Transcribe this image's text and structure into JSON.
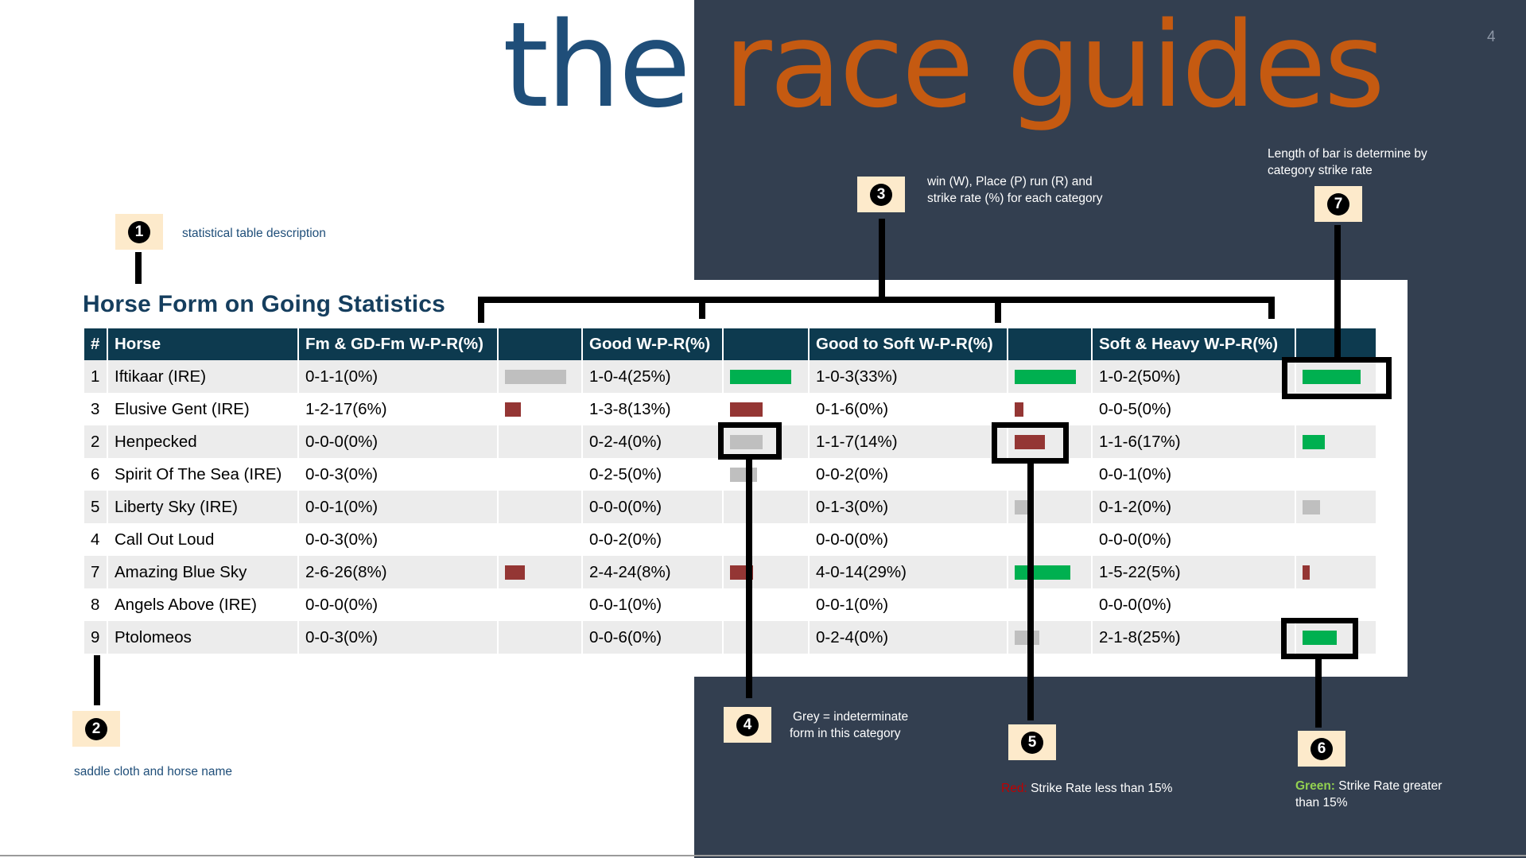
{
  "logo": {
    "word1": "the",
    "word2": "race guides"
  },
  "page_number": "4",
  "colors": {
    "dark_bg": "#333f50",
    "table_header": "#0d3a4f",
    "bar_green": "#00b050",
    "bar_red": "#943634",
    "bar_grey": "#bfbfbf",
    "logo_blue": "#1f4e79",
    "logo_orange": "#c55a11",
    "green_label": "#92d050",
    "red_label": "#c00000"
  },
  "table": {
    "title": "Horse Form on Going Statistics",
    "headers": [
      "#",
      "Horse",
      "Fm & GD-Fm W-P-R(%)",
      "",
      "Good W-P-R(%)",
      "",
      "Good to Soft W-P-R(%)",
      "",
      "Soft & Heavy W-P-R(%)",
      ""
    ],
    "rows": [
      {
        "num": "1",
        "horse": "Iftikaar (IRE)",
        "c1": "0-1-1(0%)",
        "b1": {
          "color": "grey",
          "level": 0.85
        },
        "c2": "1-0-4(25%)",
        "b2": {
          "color": "green",
          "level": 0.85
        },
        "c3": "1-0-3(33%)",
        "b3": {
          "color": "green",
          "level": 0.85
        },
        "c4": "1-0-2(50%)",
        "b4": {
          "color": "green",
          "level": 0.85
        }
      },
      {
        "num": "3",
        "horse": "Elusive Gent (IRE)",
        "c1": "1-2-17(6%)",
        "b1": {
          "color": "red",
          "level": 0.22
        },
        "c2": "1-3-8(13%)",
        "b2": {
          "color": "red",
          "level": 0.45
        },
        "c3": "0-1-6(0%)",
        "b3": {
          "color": "red",
          "level": 0.12
        },
        "c4": "0-0-5(0%)",
        "b4": null
      },
      {
        "num": "2",
        "horse": "Henpecked",
        "c1": "0-0-0(0%)",
        "b1": null,
        "c2": "0-2-4(0%)",
        "b2": {
          "color": "grey",
          "level": 0.45
        },
        "c3": "1-1-7(14%)",
        "b3": {
          "color": "red",
          "level": 0.42
        },
        "c4": "1-1-6(17%)",
        "b4": {
          "color": "green",
          "level": 0.32
        }
      },
      {
        "num": "6",
        "horse": "Spirit Of The Sea (IRE)",
        "c1": "0-0-3(0%)",
        "b1": null,
        "c2": "0-2-5(0%)",
        "b2": {
          "color": "grey",
          "level": 0.38
        },
        "c3": "0-0-2(0%)",
        "b3": null,
        "c4": "0-0-1(0%)",
        "b4": null
      },
      {
        "num": "5",
        "horse": "Liberty Sky (IRE)",
        "c1": "0-0-1(0%)",
        "b1": null,
        "c2": "0-0-0(0%)",
        "b2": null,
        "c3": "0-1-3(0%)",
        "b3": {
          "color": "grey",
          "level": 0.2
        },
        "c4": "0-1-2(0%)",
        "b4": {
          "color": "grey",
          "level": 0.25
        }
      },
      {
        "num": "4",
        "horse": "Call Out Loud",
        "c1": "0-0-3(0%)",
        "b1": null,
        "c2": "0-0-2(0%)",
        "b2": null,
        "c3": "0-0-0(0%)",
        "b3": null,
        "c4": "0-0-0(0%)",
        "b4": null
      },
      {
        "num": "7",
        "horse": "Amazing Blue Sky",
        "c1": "2-6-26(8%)",
        "b1": {
          "color": "red",
          "level": 0.28
        },
        "c2": "2-4-24(8%)",
        "b2": {
          "color": "red",
          "level": 0.32
        },
        "c3": "4-0-14(29%)",
        "b3": {
          "color": "green",
          "level": 0.78
        },
        "c4": "1-5-22(5%)",
        "b4": {
          "color": "red",
          "level": 0.1
        }
      },
      {
        "num": "8",
        "horse": "Angels Above (IRE)",
        "c1": "0-0-0(0%)",
        "b1": null,
        "c2": "0-0-1(0%)",
        "b2": null,
        "c3": "0-0-1(0%)",
        "b3": null,
        "c4": "0-0-0(0%)",
        "b4": null
      },
      {
        "num": "9",
        "horse": "Ptolomeos",
        "c1": "0-0-3(0%)",
        "b1": null,
        "c2": "0-0-6(0%)",
        "b2": null,
        "c3": "0-2-4(0%)",
        "b3": {
          "color": "grey",
          "level": 0.35
        },
        "c4": "2-1-8(25%)",
        "b4": {
          "color": "green",
          "level": 0.5
        }
      }
    ]
  },
  "annotations": {
    "a1": {
      "number": "1",
      "text": "statistical table description"
    },
    "a2": {
      "number": "2",
      "text": "saddle cloth and horse name"
    },
    "a3": {
      "number": "3",
      "line1": "win (W), Place (P) run (R) and",
      "line2": "strike rate (%) for each category"
    },
    "a4": {
      "number": "4",
      "line1": "Grey = indeterminate",
      "line2": "form in this category"
    },
    "a5": {
      "number": "5",
      "label": "Red:",
      "text": "Strike Rate less than 15%"
    },
    "a6": {
      "number": "6",
      "label": "Green:",
      "line1": "Strike Rate greater",
      "line2": "than 15%"
    },
    "a7": {
      "number": "7",
      "line1": "Length of bar is determine by",
      "line2": "category strike rate"
    }
  }
}
